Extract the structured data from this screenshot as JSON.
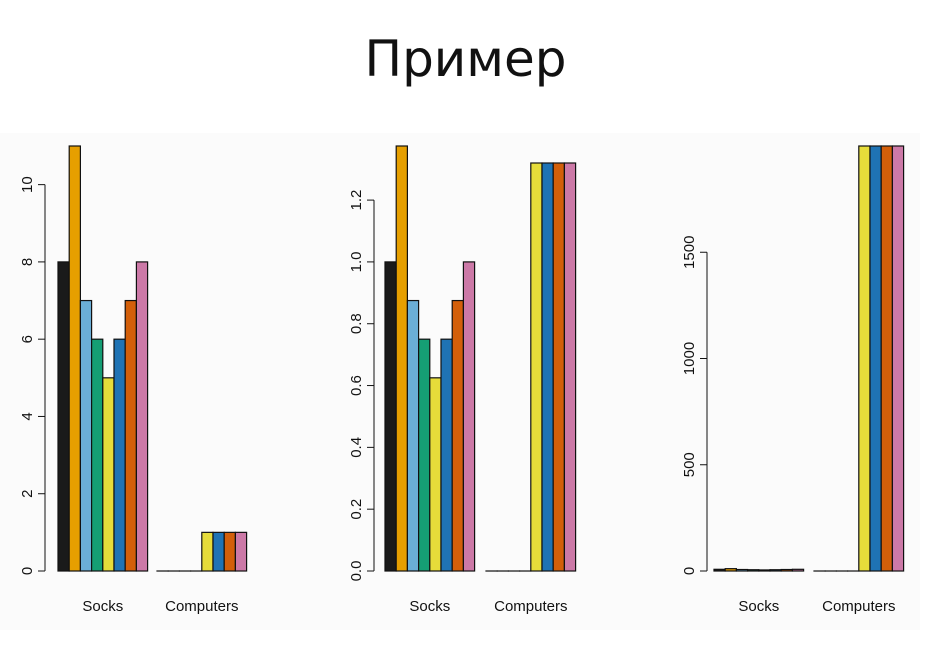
{
  "slide": {
    "title": "Пример"
  },
  "chart_data": [
    {
      "type": "bar",
      "categories": [
        "Socks",
        "Computers"
      ],
      "series": [
        {
          "values": [
            8,
            0
          ],
          "color": "#1a1a1a"
        },
        {
          "values": [
            11,
            0
          ],
          "color": "#E69F00"
        },
        {
          "values": [
            7,
            0
          ],
          "color": "#6BAED6"
        },
        {
          "values": [
            6,
            0
          ],
          "color": "#159E74"
        },
        {
          "values": [
            5,
            1
          ],
          "color": "#E6DC3A"
        },
        {
          "values": [
            6,
            1
          ],
          "color": "#1F73B4"
        },
        {
          "values": [
            7,
            1
          ],
          "color": "#D35F0A"
        },
        {
          "values": [
            8,
            1
          ],
          "color": "#CC79A7"
        }
      ],
      "ylim": [
        0,
        11
      ],
      "yticks": [
        0,
        2,
        4,
        6,
        8,
        10
      ],
      "ytick_labels": [
        "0",
        "2",
        "4",
        "6",
        "8",
        "10"
      ]
    },
    {
      "type": "bar",
      "categories": [
        "Socks",
        "Computers"
      ],
      "series": [
        {
          "values": [
            1.0,
            0
          ],
          "color": "#1a1a1a"
        },
        {
          "values": [
            1.375,
            0
          ],
          "color": "#E69F00"
        },
        {
          "values": [
            0.875,
            0
          ],
          "color": "#6BAED6"
        },
        {
          "values": [
            0.75,
            0
          ],
          "color": "#159E74"
        },
        {
          "values": [
            0.625,
            1.32
          ],
          "color": "#E6DC3A"
        },
        {
          "values": [
            0.75,
            1.32
          ],
          "color": "#1F73B4"
        },
        {
          "values": [
            0.875,
            1.32
          ],
          "color": "#D35F0A"
        },
        {
          "values": [
            1.0,
            1.32
          ],
          "color": "#CC79A7"
        }
      ],
      "ylim": [
        0,
        1.375
      ],
      "yticks": [
        0,
        0.2,
        0.4,
        0.6,
        0.8,
        1.0,
        1.2
      ],
      "ytick_labels": [
        "0.0",
        "0.2",
        "0.4",
        "0.6",
        "0.8",
        "1.0",
        "1.2"
      ]
    },
    {
      "type": "bar",
      "categories": [
        "Socks",
        "Computers"
      ],
      "series": [
        {
          "values": [
            8,
            0
          ],
          "color": "#1a1a1a"
        },
        {
          "values": [
            11,
            0
          ],
          "color": "#E69F00"
        },
        {
          "values": [
            7,
            0
          ],
          "color": "#6BAED6"
        },
        {
          "values": [
            6,
            0
          ],
          "color": "#159E74"
        },
        {
          "values": [
            5,
            2000
          ],
          "color": "#E6DC3A"
        },
        {
          "values": [
            6,
            2000
          ],
          "color": "#1F73B4"
        },
        {
          "values": [
            7,
            2000
          ],
          "color": "#D35F0A"
        },
        {
          "values": [
            8,
            2000
          ],
          "color": "#CC79A7"
        }
      ],
      "ylim": [
        0,
        2000
      ],
      "yticks": [
        0,
        500,
        1000,
        1500
      ],
      "ytick_labels": [
        "0",
        "500",
        "1000",
        "1500"
      ]
    }
  ]
}
